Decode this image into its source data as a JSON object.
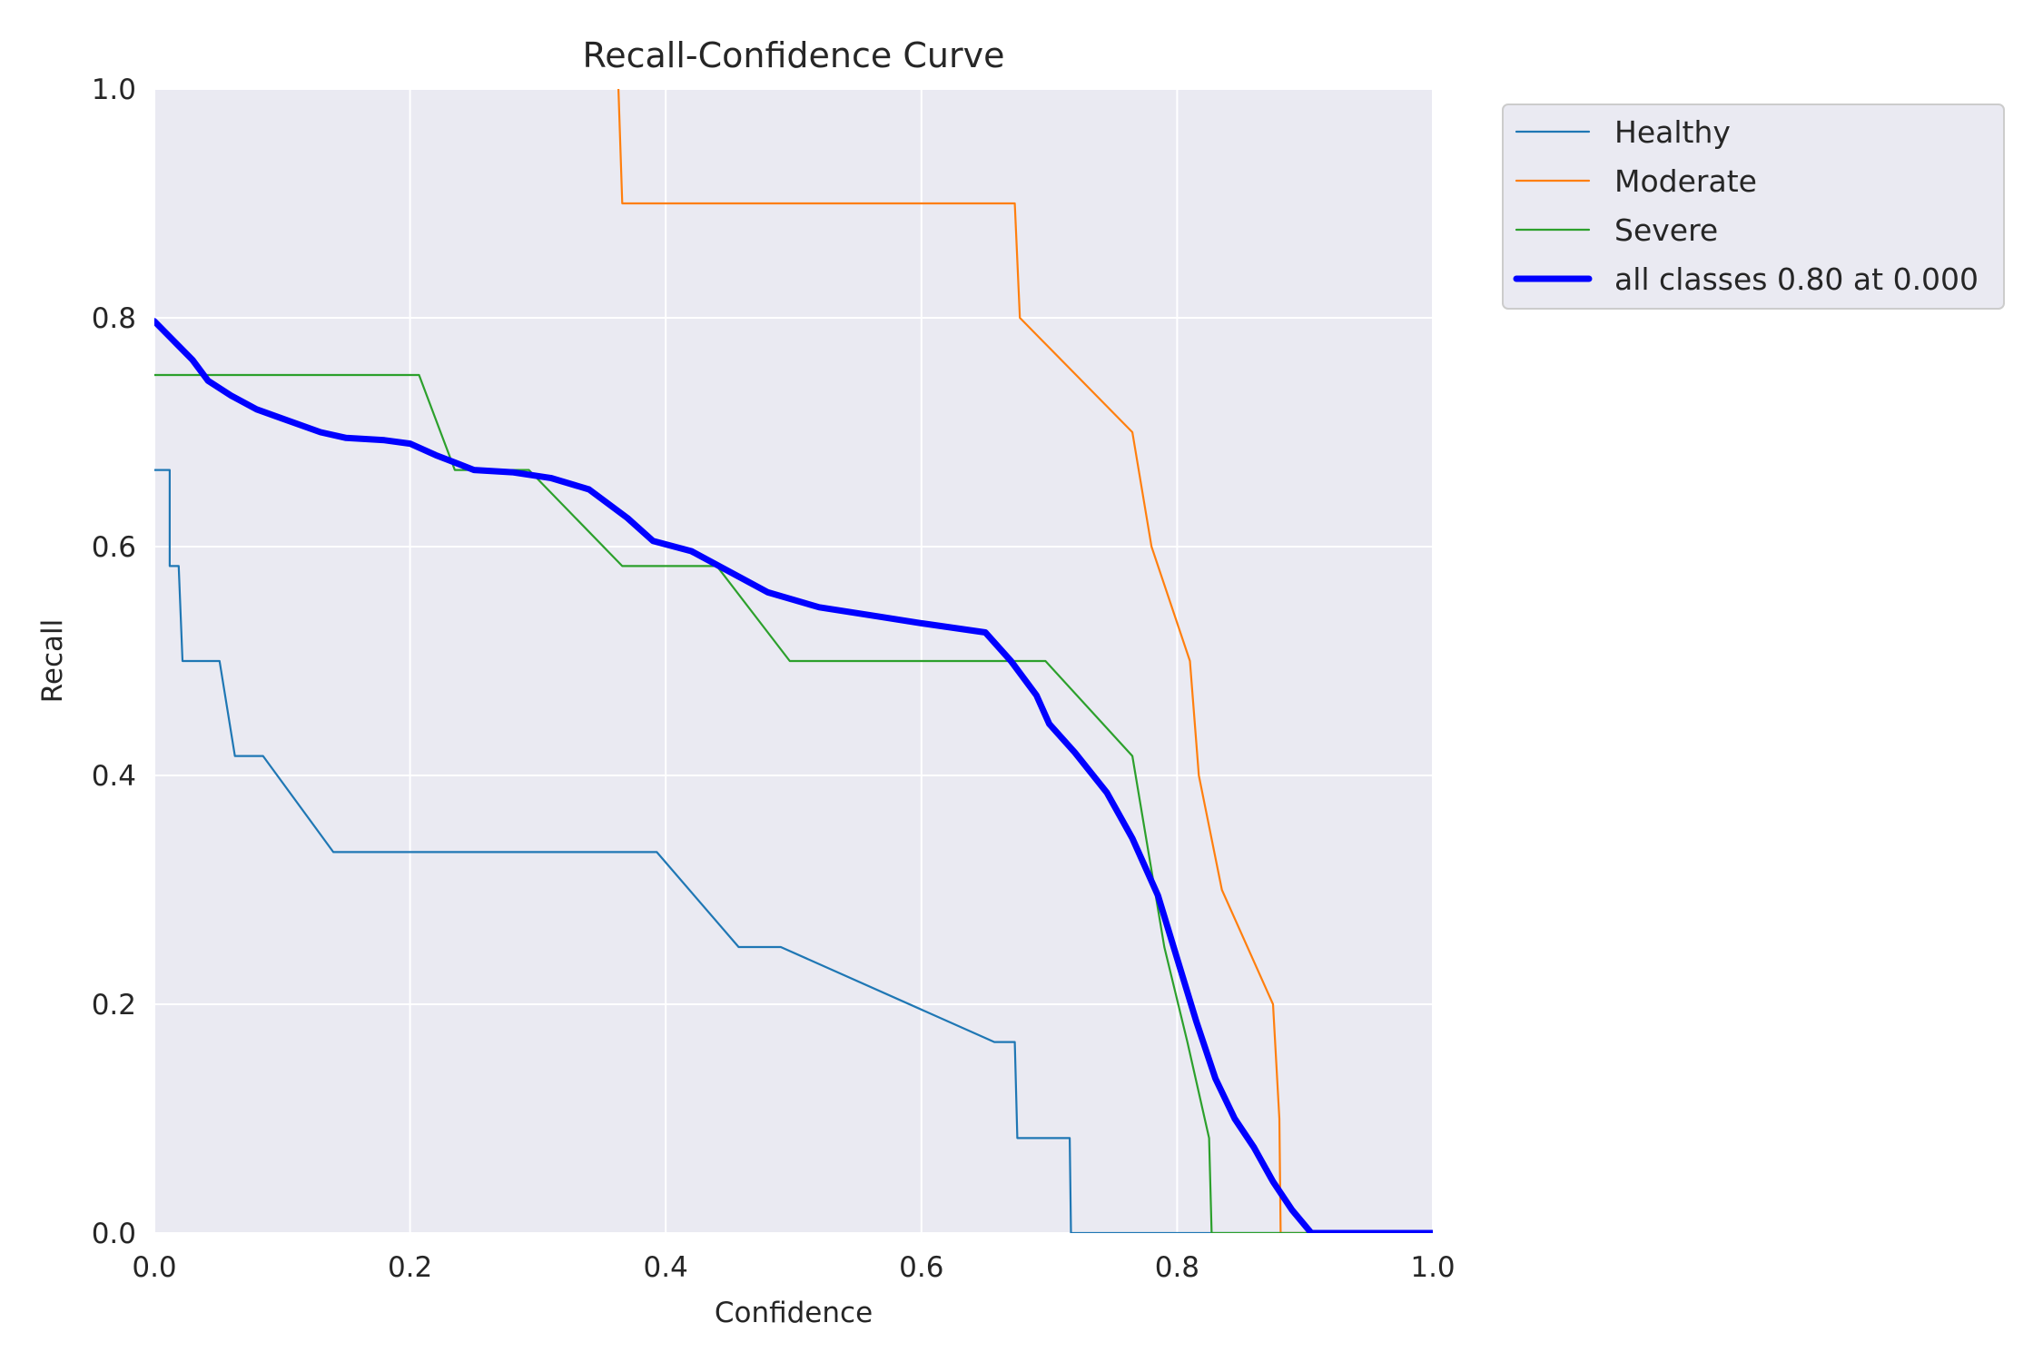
{
  "chart_data": {
    "type": "line",
    "title": "Recall-Confidence Curve",
    "xlabel": "Confidence",
    "ylabel": "Recall",
    "xlim": [
      0,
      1
    ],
    "ylim": [
      0,
      1
    ],
    "xticks": [
      "0.0",
      "0.2",
      "0.4",
      "0.6",
      "0.8",
      "1.0"
    ],
    "yticks": [
      "0.0",
      "0.2",
      "0.4",
      "0.6",
      "0.8",
      "1.0"
    ],
    "grid": true,
    "legend_position": "outside-top-right",
    "colors": {
      "background": "#eaeaf2",
      "grid": "#ffffff",
      "text": "#262626"
    },
    "series": [
      {
        "name": "Healthy",
        "color": "#1f77b4",
        "width": "thin",
        "points": [
          [
            0.0,
            0.667
          ],
          [
            0.012,
            0.667
          ],
          [
            0.012,
            0.583
          ],
          [
            0.019,
            0.583
          ],
          [
            0.022,
            0.5
          ],
          [
            0.051,
            0.5
          ],
          [
            0.063,
            0.417
          ],
          [
            0.085,
            0.417
          ],
          [
            0.14,
            0.333
          ],
          [
            0.393,
            0.333
          ],
          [
            0.457,
            0.25
          ],
          [
            0.49,
            0.25
          ],
          [
            0.657,
            0.167
          ],
          [
            0.673,
            0.167
          ],
          [
            0.675,
            0.083
          ],
          [
            0.716,
            0.083
          ],
          [
            0.717,
            0.0
          ],
          [
            1.0,
            0.0
          ]
        ]
      },
      {
        "name": "Moderate",
        "color": "#ff7f0e",
        "width": "thin",
        "points": [
          [
            0.363,
            1.0
          ],
          [
            0.366,
            0.9
          ],
          [
            0.673,
            0.9
          ],
          [
            0.677,
            0.8
          ],
          [
            0.765,
            0.7
          ],
          [
            0.78,
            0.6
          ],
          [
            0.81,
            0.5
          ],
          [
            0.817,
            0.4
          ],
          [
            0.835,
            0.3
          ],
          [
            0.875,
            0.2
          ],
          [
            0.88,
            0.1
          ],
          [
            0.881,
            0.0
          ],
          [
            1.0,
            0.0
          ]
        ]
      },
      {
        "name": "Severe",
        "color": "#2ca02c",
        "width": "thin",
        "points": [
          [
            0.0,
            0.75
          ],
          [
            0.207,
            0.75
          ],
          [
            0.235,
            0.667
          ],
          [
            0.293,
            0.667
          ],
          [
            0.366,
            0.583
          ],
          [
            0.44,
            0.583
          ],
          [
            0.497,
            0.5
          ],
          [
            0.697,
            0.5
          ],
          [
            0.765,
            0.417
          ],
          [
            0.79,
            0.25
          ],
          [
            0.808,
            0.167
          ],
          [
            0.825,
            0.083
          ],
          [
            0.827,
            0.0
          ],
          [
            1.0,
            0.0
          ]
        ]
      },
      {
        "name": "all classes 0.80 at 0.000",
        "color": "#0000ff",
        "width": "thick",
        "points": [
          [
            0.0,
            0.797
          ],
          [
            0.015,
            0.78
          ],
          [
            0.03,
            0.763
          ],
          [
            0.042,
            0.745
          ],
          [
            0.06,
            0.732
          ],
          [
            0.08,
            0.72
          ],
          [
            0.1,
            0.712
          ],
          [
            0.13,
            0.7
          ],
          [
            0.15,
            0.695
          ],
          [
            0.18,
            0.693
          ],
          [
            0.2,
            0.69
          ],
          [
            0.22,
            0.68
          ],
          [
            0.25,
            0.667
          ],
          [
            0.28,
            0.665
          ],
          [
            0.31,
            0.66
          ],
          [
            0.34,
            0.65
          ],
          [
            0.37,
            0.625
          ],
          [
            0.39,
            0.605
          ],
          [
            0.42,
            0.596
          ],
          [
            0.45,
            0.578
          ],
          [
            0.48,
            0.56
          ],
          [
            0.52,
            0.547
          ],
          [
            0.56,
            0.54
          ],
          [
            0.6,
            0.533
          ],
          [
            0.65,
            0.525
          ],
          [
            0.67,
            0.5
          ],
          [
            0.69,
            0.47
          ],
          [
            0.7,
            0.445
          ],
          [
            0.72,
            0.42
          ],
          [
            0.745,
            0.385
          ],
          [
            0.765,
            0.345
          ],
          [
            0.785,
            0.295
          ],
          [
            0.8,
            0.24
          ],
          [
            0.815,
            0.185
          ],
          [
            0.83,
            0.135
          ],
          [
            0.845,
            0.1
          ],
          [
            0.86,
            0.075
          ],
          [
            0.875,
            0.045
          ],
          [
            0.89,
            0.02
          ],
          [
            0.905,
            0.0
          ],
          [
            1.0,
            0.0
          ]
        ]
      }
    ]
  }
}
